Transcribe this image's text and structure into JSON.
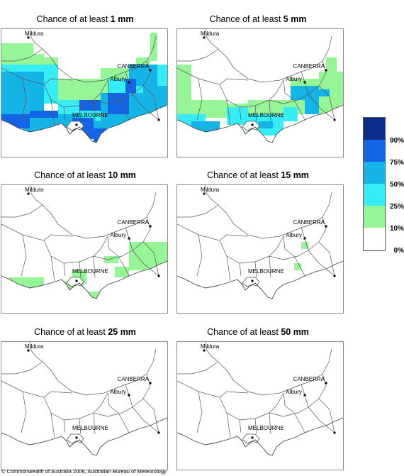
{
  "panels": [
    {
      "prefix": "Chance of at least ",
      "amount": "1 mm"
    },
    {
      "prefix": "Chance of at least ",
      "amount": "5 mm"
    },
    {
      "prefix": "Chance of at least ",
      "amount": "10 mm"
    },
    {
      "prefix": "Chance of at least ",
      "amount": "15 mm"
    },
    {
      "prefix": "Chance of at least ",
      "amount": "25 mm"
    },
    {
      "prefix": "Chance of at least ",
      "amount": "50 mm"
    }
  ],
  "places": {
    "mildura": "Mildura",
    "canberra": "CANBERRA",
    "albury": "Albury",
    "melbourne": "MELBOURNE"
  },
  "legend": {
    "labels": [
      "90%",
      "75%",
      "50%",
      "25%",
      "10%",
      "0%"
    ],
    "colors": [
      "#0a2d8c",
      "#1464e6",
      "#14b4e6",
      "#36ecf5",
      "#96f596",
      "#ffffff"
    ]
  },
  "copyright": "© Commonwealth of Australia 2006, Australian Bureau of Meteorology"
}
